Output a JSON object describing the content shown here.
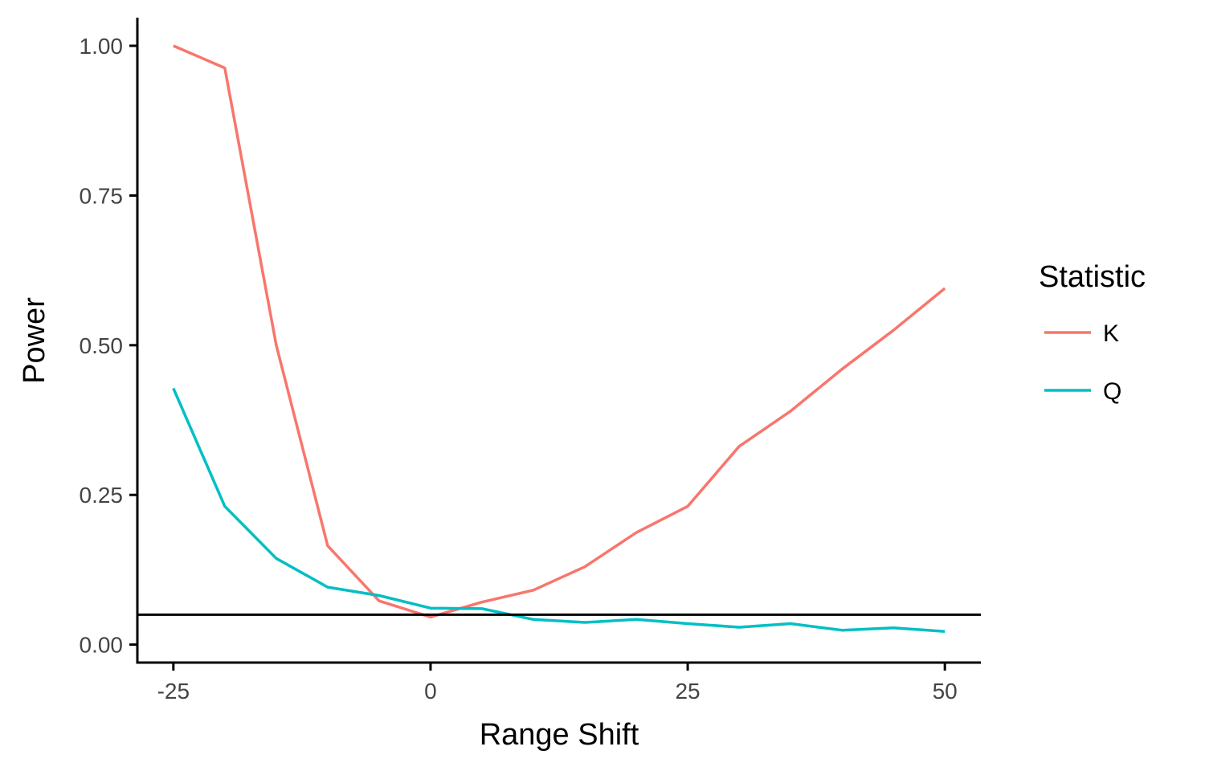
{
  "chart_data": {
    "type": "line",
    "xlabel": "Range Shift",
    "ylabel": "Power",
    "xlim": [
      -28.5,
      53.5
    ],
    "ylim": [
      -0.03,
      1.047
    ],
    "xticks": [
      -25,
      0,
      25,
      50
    ],
    "xtick_labels": [
      "-25",
      "0",
      "25",
      "50"
    ],
    "yticks": [
      0,
      0.25,
      0.5,
      0.75,
      1
    ],
    "ytick_labels": [
      "0.00",
      "0.25",
      "0.50",
      "0.75",
      "1.00"
    ],
    "hline": 0.05,
    "grid": false,
    "legend": {
      "title": "Statistic",
      "position": "right"
    },
    "x": [
      -25,
      -20,
      -15,
      -10,
      -5,
      0,
      5,
      10,
      15,
      20,
      25,
      30,
      35,
      40,
      45,
      50
    ],
    "series": [
      {
        "name": "K",
        "color": "#F8766D",
        "values": [
          1.0,
          0.963,
          0.5,
          0.165,
          0.073,
          0.046,
          0.071,
          0.091,
          0.13,
          0.187,
          0.231,
          0.331,
          0.39,
          0.46,
          0.525,
          0.595
        ]
      },
      {
        "name": "Q",
        "color": "#00BFC4",
        "values": [
          0.428,
          0.231,
          0.144,
          0.096,
          0.082,
          0.061,
          0.06,
          0.042,
          0.037,
          0.042,
          0.035,
          0.029,
          0.035,
          0.024,
          0.028,
          0.022
        ]
      }
    ]
  }
}
